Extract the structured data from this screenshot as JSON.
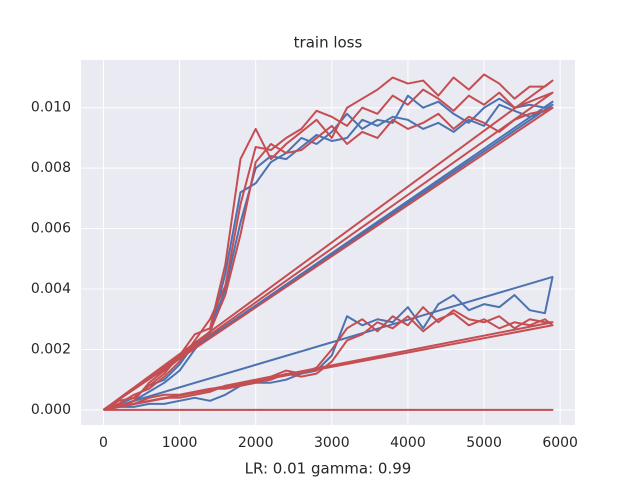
{
  "chart_data": {
    "type": "line",
    "title": "train loss",
    "xlabel": "LR: 0.01 gamma: 0.99",
    "x": [
      0,
      200,
      400,
      600,
      800,
      1000,
      1200,
      1400,
      1600,
      1800,
      2000,
      2200,
      2400,
      2600,
      2800,
      3000,
      3200,
      3400,
      3600,
      3800,
      4000,
      4200,
      4400,
      4600,
      4800,
      5000,
      5200,
      5400,
      5600,
      5800,
      5900,
      0
    ],
    "series": [
      {
        "color": "#4c72b0",
        "values": [
          0,
          0.0002,
          0.0004,
          0.0008,
          0.001,
          0.0015,
          0.0022,
          0.0025,
          0.0045,
          0.0072,
          0.0075,
          0.0082,
          0.0085,
          0.009,
          0.0088,
          0.0092,
          0.0098,
          0.0093,
          0.0096,
          0.0095,
          0.0104,
          0.01,
          0.0102,
          0.0098,
          0.0095,
          0.01,
          0.0103,
          0.01,
          0.0101,
          0.01,
          0.0102,
          0
        ]
      },
      {
        "color": "#4c72b0",
        "values": [
          0,
          0.0001,
          0.0003,
          0.0006,
          0.0009,
          0.0013,
          0.002,
          0.0026,
          0.004,
          0.0062,
          0.008,
          0.0084,
          0.0083,
          0.0087,
          0.0091,
          0.0089,
          0.009,
          0.0096,
          0.0094,
          0.0097,
          0.0096,
          0.0093,
          0.0095,
          0.0092,
          0.0096,
          0.0094,
          0.0101,
          0.0099,
          0.0097,
          0.0099,
          0.0101,
          0
        ]
      },
      {
        "color": "#4c72b0",
        "values": [
          0,
          0.0001,
          0.0001,
          0.0002,
          0.0002,
          0.0003,
          0.0004,
          0.0003,
          0.0005,
          0.0008,
          0.0009,
          0.0009,
          0.001,
          0.0012,
          0.0013,
          0.0018,
          0.0031,
          0.0028,
          0.003,
          0.0029,
          0.0034,
          0.0027,
          0.0035,
          0.0038,
          0.0033,
          0.0035,
          0.0034,
          0.0038,
          0.0033,
          0.0032,
          0.0044,
          0
        ]
      },
      {
        "color": "#c44e52",
        "values": [
          0,
          0.0003,
          0.0004,
          0.0008,
          0.0012,
          0.0018,
          0.0025,
          0.0027,
          0.0048,
          0.0083,
          0.0093,
          0.0083,
          0.0088,
          0.0092,
          0.0096,
          0.009,
          0.01,
          0.0103,
          0.0106,
          0.011,
          0.0108,
          0.0109,
          0.0104,
          0.011,
          0.0106,
          0.0111,
          0.0108,
          0.0103,
          0.0107,
          0.0107,
          0.0109,
          0
        ]
      },
      {
        "color": "#c44e52",
        "values": [
          0,
          0.0002,
          0.0005,
          0.0007,
          0.0011,
          0.0016,
          0.0023,
          0.003,
          0.0041,
          0.0068,
          0.0087,
          0.0086,
          0.009,
          0.0093,
          0.0099,
          0.0097,
          0.0094,
          0.01,
          0.0098,
          0.0104,
          0.0101,
          0.0106,
          0.0103,
          0.0099,
          0.0104,
          0.0101,
          0.0105,
          0.01,
          0.0102,
          0.0104,
          0.0105,
          0
        ]
      },
      {
        "color": "#c44e52",
        "values": [
          0,
          0.0001,
          0.0003,
          0.0009,
          0.0013,
          0.0017,
          0.0021,
          0.0026,
          0.0038,
          0.0058,
          0.0082,
          0.0088,
          0.0085,
          0.0086,
          0.009,
          0.0094,
          0.0088,
          0.0092,
          0.009,
          0.0096,
          0.0093,
          0.0095,
          0.0098,
          0.0093,
          0.0097,
          0.0095,
          0.0092,
          0.0096,
          0.0098,
          0.0099,
          0.01,
          0
        ]
      },
      {
        "color": "#c44e52",
        "values": [
          0,
          0.0002,
          0.0002,
          0.0003,
          0.0004,
          0.0004,
          0.0005,
          0.0006,
          0.0008,
          0.0009,
          0.001,
          0.0011,
          0.0013,
          0.0012,
          0.0014,
          0.002,
          0.0027,
          0.003,
          0.0026,
          0.0031,
          0.0028,
          0.0034,
          0.0029,
          0.0033,
          0.003,
          0.0029,
          0.0031,
          0.0027,
          0.003,
          0.0029,
          0.0029,
          0
        ]
      },
      {
        "color": "#c44e52",
        "values": [
          0,
          0.0001,
          0.0002,
          0.0004,
          0.0005,
          0.0005,
          0.0006,
          0.0007,
          0.0007,
          0.0008,
          0.0009,
          0.001,
          0.0012,
          0.0011,
          0.0012,
          0.0016,
          0.0023,
          0.0025,
          0.0029,
          0.0027,
          0.0031,
          0.0026,
          0.003,
          0.0032,
          0.0028,
          0.003,
          0.0027,
          0.0029,
          0.0028,
          0.003,
          0.0028,
          0
        ]
      },
      {
        "color": "#c44e52",
        "values": [
          0,
          0,
          0,
          0,
          0,
          0,
          0,
          0,
          0,
          0,
          0,
          0,
          0,
          0,
          0,
          0,
          0,
          0,
          0,
          0,
          0,
          0,
          0,
          0,
          0,
          0,
          0,
          0,
          0,
          0,
          0,
          0
        ]
      }
    ],
    "xlim": [
      -295,
      6195
    ],
    "xticks": [
      0,
      1000,
      2000,
      3000,
      4000,
      5000,
      6000
    ],
    "ylim": [
      -0.0005,
      0.01158
    ],
    "yticks": [
      {
        "value": 0,
        "label": "0.000"
      },
      {
        "value": 0.002,
        "label": "0.002"
      },
      {
        "value": 0.004,
        "label": "0.004"
      },
      {
        "value": 0.006,
        "label": "0.006"
      },
      {
        "value": 0.008,
        "label": "0.008"
      },
      {
        "value": 0.01,
        "label": "0.010"
      }
    ],
    "grid": true
  }
}
